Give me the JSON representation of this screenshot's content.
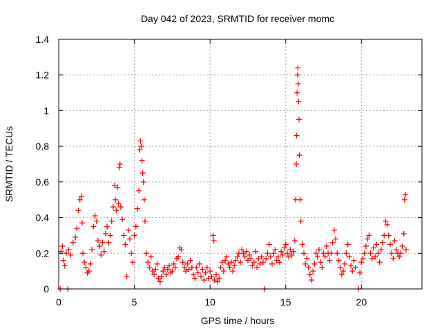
{
  "chart_data": {
    "type": "scatter",
    "title": "Day 042 of 2023, SRMTID for receiver momc",
    "xlabel": "GPS time / hours",
    "ylabel": "SRMTID / TECUs",
    "xlim": [
      0,
      24
    ],
    "ylim": [
      0,
      1.4
    ],
    "xticks": [
      0,
      5,
      10,
      15,
      20
    ],
    "yticks": [
      0,
      0.2,
      0.4,
      0.6,
      0.8,
      1,
      1.2,
      1.4
    ],
    "xtick_labels": [
      "0",
      "5",
      "10",
      "15",
      "20"
    ],
    "ytick_labels": [
      "0",
      "0.2",
      "0.4",
      "0.6",
      "0.8",
      "1",
      "1.2",
      "1.4"
    ],
    "grid": true,
    "marker": "+",
    "color": "#ff0000",
    "series": [
      {
        "name": "SRMTID",
        "points": [
          [
            0.1,
            0.0
          ],
          [
            0.15,
            0.21
          ],
          [
            0.25,
            0.24
          ],
          [
            0.3,
            0.16
          ],
          [
            0.4,
            0.13
          ],
          [
            0.5,
            0.2
          ],
          [
            0.6,
            0.0
          ],
          [
            0.65,
            0.22
          ],
          [
            0.8,
            0.19
          ],
          [
            0.95,
            0.26
          ],
          [
            1.1,
            0.29
          ],
          [
            1.2,
            0.34
          ],
          [
            1.3,
            0.44
          ],
          [
            1.4,
            0.5
          ],
          [
            1.5,
            0.52
          ],
          [
            1.55,
            0.37
          ],
          [
            1.6,
            0.2
          ],
          [
            1.7,
            0.15
          ],
          [
            1.8,
            0.12
          ],
          [
            1.9,
            0.09
          ],
          [
            2.0,
            0.1
          ],
          [
            2.1,
            0.14
          ],
          [
            2.2,
            0.22
          ],
          [
            2.3,
            0.35
          ],
          [
            2.4,
            0.41
          ],
          [
            2.5,
            0.38
          ],
          [
            2.6,
            0.27
          ],
          [
            2.7,
            0.24
          ],
          [
            2.8,
            0.19
          ],
          [
            2.9,
            0.26
          ],
          [
            3.0,
            0.21
          ],
          [
            3.1,
            0.31
          ],
          [
            3.2,
            0.35
          ],
          [
            3.3,
            0.26
          ],
          [
            3.4,
            0.3
          ],
          [
            3.5,
            0.38
          ],
          [
            3.6,
            0.46
          ],
          [
            3.7,
            0.58
          ],
          [
            3.75,
            0.5
          ],
          [
            3.8,
            0.44
          ],
          [
            3.9,
            0.57
          ],
          [
            3.95,
            0.48
          ],
          [
            4.0,
            0.68
          ],
          [
            4.05,
            0.7
          ],
          [
            4.1,
            0.46
          ],
          [
            4.2,
            0.39
          ],
          [
            4.3,
            0.3
          ],
          [
            4.4,
            0.25
          ],
          [
            4.5,
            0.07
          ],
          [
            4.6,
            0.33
          ],
          [
            4.7,
            0.28
          ],
          [
            4.8,
            0.2
          ],
          [
            4.9,
            0.15
          ],
          [
            5.0,
            0.3
          ],
          [
            5.1,
            0.35
          ],
          [
            5.2,
            0.45
          ],
          [
            5.3,
            0.55
          ],
          [
            5.35,
            0.78
          ],
          [
            5.4,
            0.83
          ],
          [
            5.45,
            0.8
          ],
          [
            5.5,
            0.72
          ],
          [
            5.55,
            0.65
          ],
          [
            5.6,
            0.6
          ],
          [
            5.65,
            0.5
          ],
          [
            5.7,
            0.38
          ],
          [
            5.8,
            0.2
          ],
          [
            5.9,
            0.15
          ],
          [
            6.0,
            0.12
          ],
          [
            6.1,
            0.18
          ],
          [
            6.2,
            0.1
          ],
          [
            6.3,
            0.08
          ],
          [
            6.4,
            0.11
          ],
          [
            6.5,
            0.14
          ],
          [
            6.6,
            0.06
          ],
          [
            6.7,
            0.04
          ],
          [
            6.8,
            0.07
          ],
          [
            6.9,
            0.1
          ],
          [
            7.0,
            0.12
          ],
          [
            7.1,
            0.08
          ],
          [
            7.2,
            0.11
          ],
          [
            7.3,
            0.13
          ],
          [
            7.4,
            0.09
          ],
          [
            7.5,
            0.1
          ],
          [
            7.6,
            0.14
          ],
          [
            7.7,
            0.12
          ],
          [
            7.8,
            0.17
          ],
          [
            7.9,
            0.18
          ],
          [
            8.0,
            0.23
          ],
          [
            8.1,
            0.22
          ],
          [
            8.2,
            0.15
          ],
          [
            8.3,
            0.12
          ],
          [
            8.4,
            0.1
          ],
          [
            8.5,
            0.14
          ],
          [
            8.6,
            0.11
          ],
          [
            8.7,
            0.16
          ],
          [
            8.8,
            0.12
          ],
          [
            8.9,
            0.08
          ],
          [
            9.0,
            0.06
          ],
          [
            9.1,
            0.12
          ],
          [
            9.2,
            0.09
          ],
          [
            9.3,
            0.14
          ],
          [
            9.4,
            0.07
          ],
          [
            9.5,
            0.11
          ],
          [
            9.6,
            0.05
          ],
          [
            9.7,
            0.09
          ],
          [
            9.8,
            0.12
          ],
          [
            9.9,
            0.06
          ],
          [
            10.0,
            0.1
          ],
          [
            10.1,
            0.07
          ],
          [
            10.2,
            0.3
          ],
          [
            10.25,
            0.27
          ],
          [
            10.3,
            0.05
          ],
          [
            10.4,
            0.08
          ],
          [
            10.5,
            0.04
          ],
          [
            10.6,
            0.06
          ],
          [
            10.7,
            0.12
          ],
          [
            10.8,
            0.15
          ],
          [
            10.9,
            0.1
          ],
          [
            11.0,
            0.16
          ],
          [
            11.1,
            0.18
          ],
          [
            11.2,
            0.14
          ],
          [
            11.3,
            0.12
          ],
          [
            11.4,
            0.15
          ],
          [
            11.5,
            0.1
          ],
          [
            11.6,
            0.13
          ],
          [
            11.7,
            0.16
          ],
          [
            11.8,
            0.18
          ],
          [
            11.9,
            0.2
          ],
          [
            12.0,
            0.15
          ],
          [
            12.1,
            0.22
          ],
          [
            12.2,
            0.2
          ],
          [
            12.3,
            0.18
          ],
          [
            12.4,
            0.21
          ],
          [
            12.5,
            0.16
          ],
          [
            12.6,
            0.19
          ],
          [
            12.7,
            0.17
          ],
          [
            12.8,
            0.13
          ],
          [
            12.9,
            0.15
          ],
          [
            13.0,
            0.21
          ],
          [
            13.1,
            0.12
          ],
          [
            13.2,
            0.17
          ],
          [
            13.3,
            0.14
          ],
          [
            13.4,
            0.18
          ],
          [
            13.5,
            0.15
          ],
          [
            13.6,
            0.0
          ],
          [
            13.7,
            0.17
          ],
          [
            13.8,
            0.2
          ],
          [
            13.9,
            0.25
          ],
          [
            14.0,
            0.18
          ],
          [
            14.1,
            0.14
          ],
          [
            14.2,
            0.2
          ],
          [
            14.3,
            0.22
          ],
          [
            14.4,
            0.16
          ],
          [
            14.5,
            0.18
          ],
          [
            14.6,
            0.15
          ],
          [
            14.7,
            0.21
          ],
          [
            14.8,
            0.19
          ],
          [
            14.9,
            0.23
          ],
          [
            15.0,
            0.25
          ],
          [
            15.1,
            0.2
          ],
          [
            15.2,
            0.18
          ],
          [
            15.3,
            0.22
          ],
          [
            15.4,
            0.19
          ],
          [
            15.5,
            0.21
          ],
          [
            15.6,
            0.27
          ],
          [
            15.65,
            0.5
          ],
          [
            15.7,
            0.7
          ],
          [
            15.72,
            0.86
          ],
          [
            15.75,
            1.1
          ],
          [
            15.78,
            1.2
          ],
          [
            15.8,
            1.24
          ],
          [
            15.82,
            1.15
          ],
          [
            15.85,
            1.05
          ],
          [
            15.88,
            0.95
          ],
          [
            15.9,
            0.75
          ],
          [
            15.95,
            0.5
          ],
          [
            16.0,
            0.38
          ],
          [
            16.1,
            0.25
          ],
          [
            16.2,
            0.2
          ],
          [
            16.3,
            0.14
          ],
          [
            16.4,
            0.17
          ],
          [
            16.5,
            0.12
          ],
          [
            16.6,
            0.08
          ],
          [
            16.7,
            0.05
          ],
          [
            16.8,
            0.1
          ],
          [
            16.9,
            0.14
          ],
          [
            17.0,
            0.2
          ],
          [
            17.1,
            0.18
          ],
          [
            17.2,
            0.22
          ],
          [
            17.3,
            0.15
          ],
          [
            17.4,
            0.12
          ],
          [
            17.5,
            0.2
          ],
          [
            17.6,
            0.18
          ],
          [
            17.7,
            0.24
          ],
          [
            17.8,
            0.2
          ],
          [
            17.9,
            0.16
          ],
          [
            18.0,
            0.2
          ],
          [
            18.1,
            0.26
          ],
          [
            18.2,
            0.33
          ],
          [
            18.3,
            0.28
          ],
          [
            18.4,
            0.2
          ],
          [
            18.5,
            0.16
          ],
          [
            18.6,
            0.12
          ],
          [
            18.7,
            0.08
          ],
          [
            18.8,
            0.1
          ],
          [
            18.9,
            0.14
          ],
          [
            19.0,
            0.2
          ],
          [
            19.1,
            0.25
          ],
          [
            19.2,
            0.18
          ],
          [
            19.3,
            0.13
          ],
          [
            19.4,
            0.1
          ],
          [
            19.5,
            0.16
          ],
          [
            19.6,
            0.12
          ],
          [
            19.8,
            0.0
          ],
          [
            19.9,
            0.09
          ],
          [
            20.0,
            0.15
          ],
          [
            20.1,
            0.17
          ],
          [
            20.2,
            0.2
          ],
          [
            20.3,
            0.24
          ],
          [
            20.4,
            0.28
          ],
          [
            20.5,
            0.3
          ],
          [
            20.6,
            0.2
          ],
          [
            20.7,
            0.17
          ],
          [
            20.8,
            0.23
          ],
          [
            20.9,
            0.18
          ],
          [
            21.0,
            0.25
          ],
          [
            21.1,
            0.2
          ],
          [
            21.2,
            0.15
          ],
          [
            21.3,
            0.22
          ],
          [
            21.4,
            0.26
          ],
          [
            21.5,
            0.3
          ],
          [
            21.6,
            0.38
          ],
          [
            21.7,
            0.36
          ],
          [
            21.8,
            0.3
          ],
          [
            21.9,
            0.25
          ],
          [
            22.0,
            0.2
          ],
          [
            22.1,
            0.17
          ],
          [
            22.2,
            0.27
          ],
          [
            22.3,
            0.22
          ],
          [
            22.4,
            0.2
          ],
          [
            22.5,
            0.18
          ],
          [
            22.6,
            0.2
          ],
          [
            22.7,
            0.24
          ],
          [
            22.8,
            0.31
          ],
          [
            22.85,
            0.5
          ],
          [
            22.9,
            0.53
          ],
          [
            22.95,
            0.22
          ]
        ]
      }
    ]
  }
}
